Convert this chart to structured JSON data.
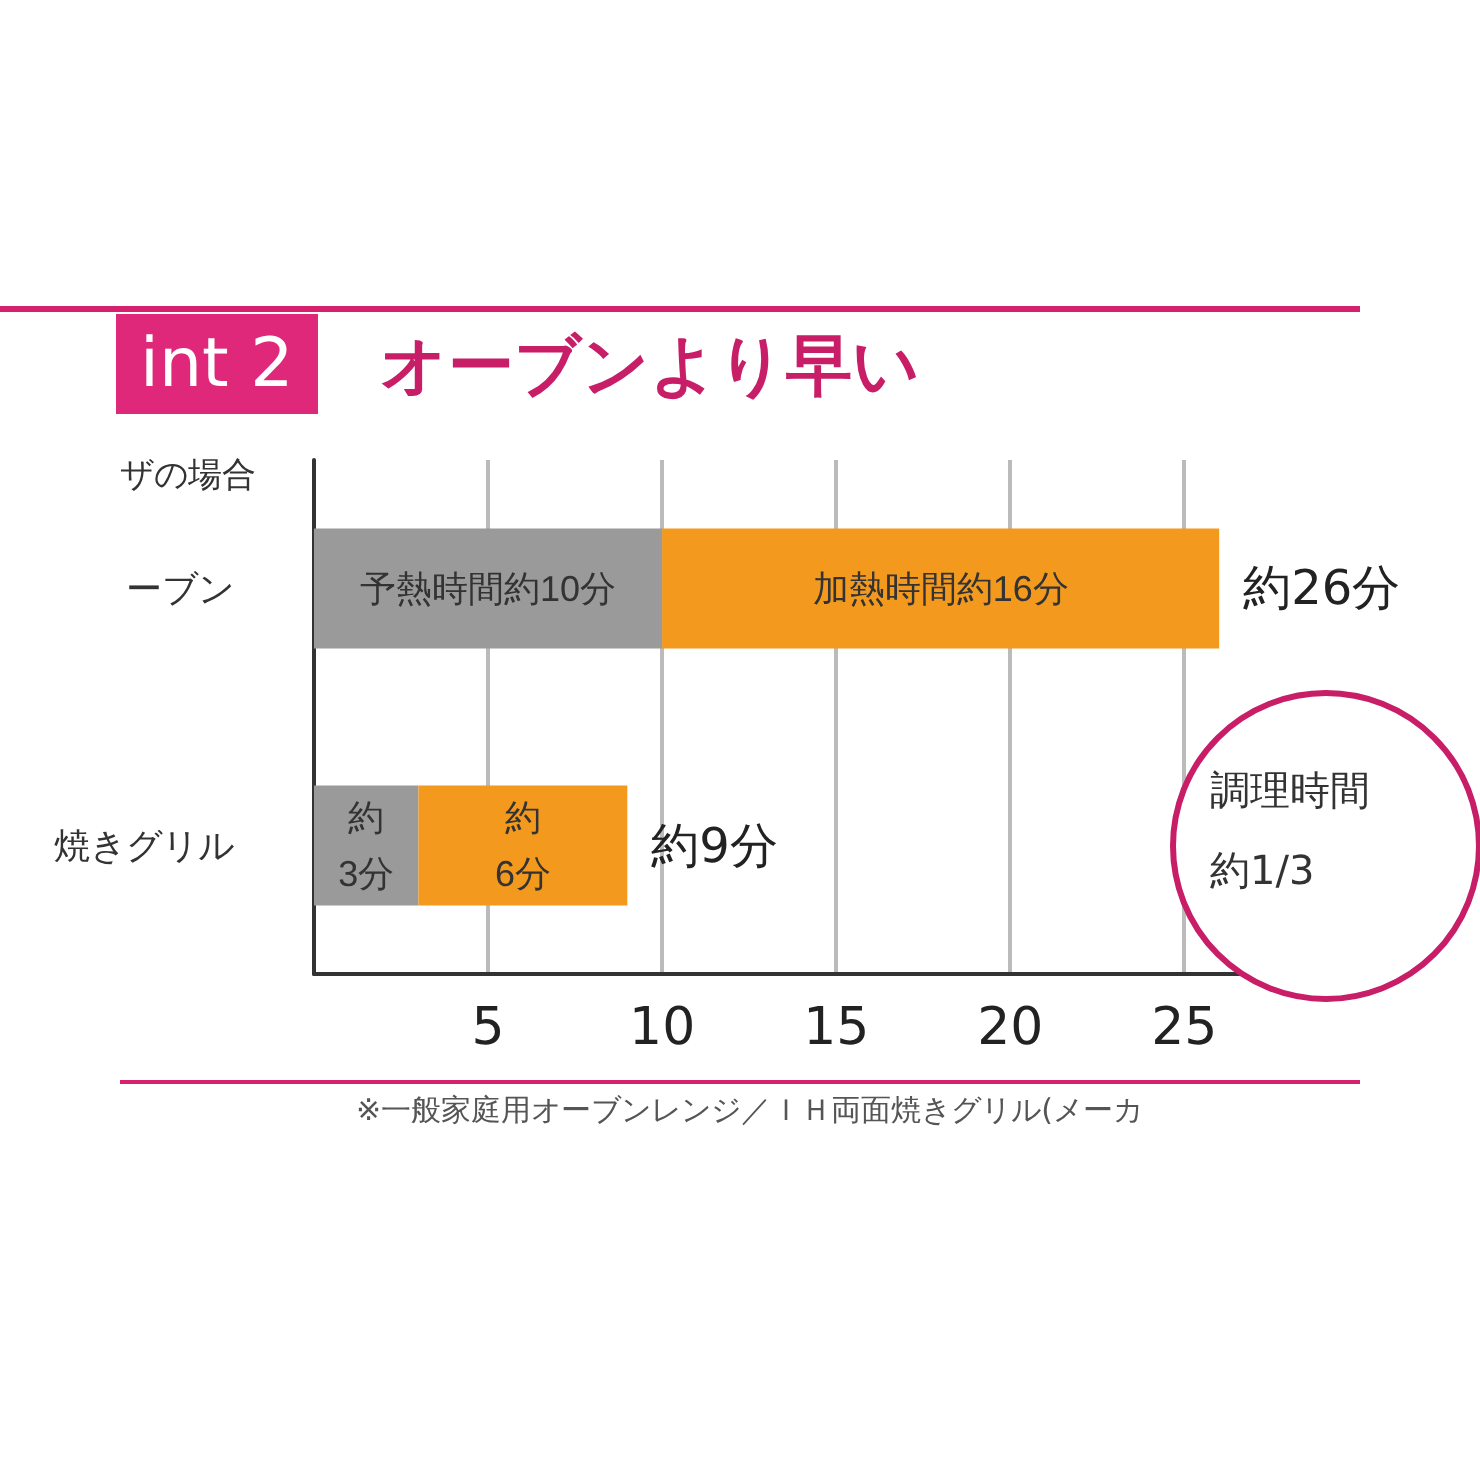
{
  "chart_data": {
    "type": "bar",
    "orientation": "horizontal",
    "stacked": true,
    "title": "オーブンより早い",
    "categories": [
      "ーブン",
      "焼きグリル"
    ],
    "series": [
      {
        "color": "#9a9a9a",
        "values": [
          10,
          3
        ],
        "value_labels": [
          "予熱時間約10分",
          "約\n3分"
        ]
      },
      {
        "color": "#f39a1e",
        "values": [
          16,
          6
        ],
        "value_labels": [
          "加熱時間約16分",
          "約\n6分"
        ]
      }
    ],
    "totals": [
      "約26分",
      "約9分"
    ],
    "xlim": [
      0,
      27
    ],
    "xticks": [
      5,
      10,
      15,
      20,
      25
    ],
    "grid": "x",
    "annotations": [
      "int 2",
      "ザの場合",
      "調理時間約1/3",
      "※一般家庭用オーブンレンジ／ＩＨ両面焼きグリル(メーカ"
    ]
  }
}
